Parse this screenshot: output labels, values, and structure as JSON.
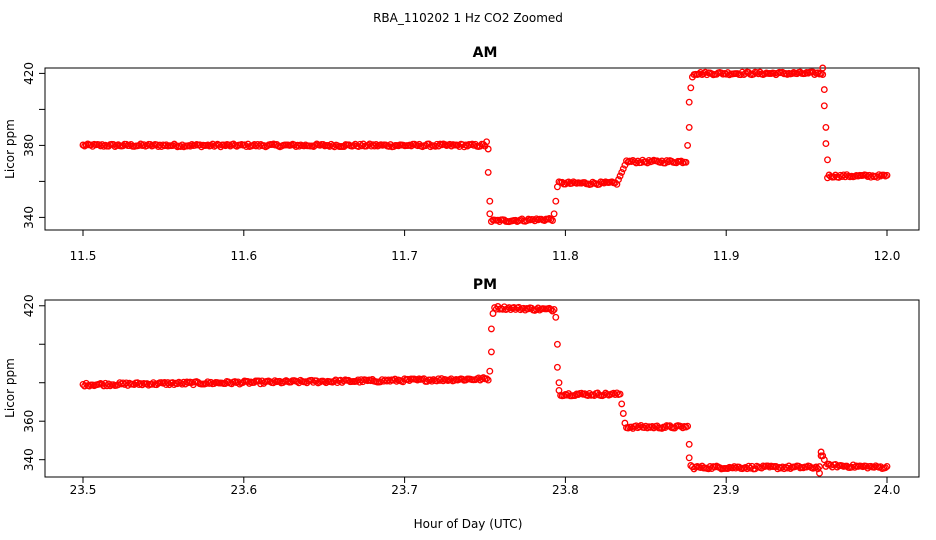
{
  "figure": {
    "title": "RBA_110202  1 Hz CO2 Zoomed",
    "xlabel": "Hour of Day (UTC)"
  },
  "chart_data": [
    {
      "type": "scatter",
      "title": "AM",
      "ylabel": "Licor ppm",
      "xlim": [
        11.5,
        12.0
      ],
      "ylim": [
        333,
        423
      ],
      "xticks": [
        11.5,
        11.6,
        11.7,
        11.8,
        11.9,
        12.0
      ],
      "xtick_labels": [
        "11.5",
        "11.6",
        "11.7",
        "11.8",
        "11.9",
        "12.0"
      ],
      "yticks": [
        340,
        360,
        380,
        400,
        420
      ],
      "ytick_labels": [
        "340",
        "",
        "380",
        "",
        "420"
      ],
      "marker": "open-circle",
      "color": "#ff0000",
      "segments": [
        {
          "x_start": 11.5,
          "x_end": 11.75,
          "y_start": 380,
          "y_end": 380
        },
        {
          "x_start": 11.754,
          "x_end": 11.792,
          "y_start": 338,
          "y_end": 339
        },
        {
          "x_start": 11.796,
          "x_end": 11.832,
          "y_start": 359,
          "y_end": 359
        },
        {
          "x_start": 11.838,
          "x_end": 11.875,
          "y_start": 371,
          "y_end": 371
        },
        {
          "x_start": 11.88,
          "x_end": 11.96,
          "y_start": 420,
          "y_end": 420
        },
        {
          "x_start": 11.964,
          "x_end": 12.0,
          "y_start": 363,
          "y_end": 363
        }
      ],
      "transitions": [
        {
          "x": [
            11.751,
            11.752,
            11.752,
            11.753,
            11.753
          ],
          "y": [
            382,
            378,
            365,
            349,
            342
          ]
        },
        {
          "x": [
            11.793,
            11.794,
            11.795
          ],
          "y": [
            342,
            349,
            357
          ]
        },
        {
          "x": [
            11.833,
            11.834,
            11.835,
            11.836,
            11.837
          ],
          "y": [
            361,
            363,
            365,
            367,
            369
          ]
        },
        {
          "x": [
            11.876,
            11.877,
            11.877,
            11.878,
            11.879
          ],
          "y": [
            380,
            390,
            404,
            412,
            418
          ]
        },
        {
          "x": [
            11.96,
            11.961,
            11.961,
            11.962,
            11.962,
            11.963,
            11.963
          ],
          "y": [
            423,
            411,
            402,
            390,
            381,
            372,
            362
          ]
        }
      ]
    },
    {
      "type": "scatter",
      "title": "PM",
      "ylabel": "Licor ppm",
      "xlim": [
        23.5,
        24.0
      ],
      "ylim": [
        331,
        423
      ],
      "xticks": [
        23.5,
        23.6,
        23.7,
        23.8,
        23.9,
        24.0
      ],
      "xtick_labels": [
        "23.5",
        "23.6",
        "23.7",
        "23.8",
        "23.9",
        "24.0"
      ],
      "yticks": [
        340,
        360,
        380,
        400,
        420
      ],
      "ytick_labels": [
        "340",
        "360",
        "",
        "",
        "420"
      ],
      "marker": "open-circle",
      "color": "#ff0000",
      "segments": [
        {
          "x_start": 23.5,
          "x_end": 23.68,
          "y_start": 379,
          "y_end": 381
        },
        {
          "x_start": 23.68,
          "x_end": 23.752,
          "y_start": 381,
          "y_end": 382
        },
        {
          "x_start": 23.756,
          "x_end": 23.793,
          "y_start": 419,
          "y_end": 418
        },
        {
          "x_start": 23.797,
          "x_end": 23.834,
          "y_start": 374,
          "y_end": 374
        },
        {
          "x_start": 23.838,
          "x_end": 23.876,
          "y_start": 357,
          "y_end": 357
        },
        {
          "x_start": 23.879,
          "x_end": 23.958,
          "y_start": 336,
          "y_end": 336
        },
        {
          "x_start": 23.962,
          "x_end": 24.0,
          "y_start": 337,
          "y_end": 336
        }
      ],
      "transitions": [
        {
          "x": [
            23.753,
            23.754,
            23.754,
            23.755
          ],
          "y": [
            386,
            396,
            408,
            416
          ]
        },
        {
          "x": [
            23.794,
            23.795,
            23.795,
            23.796,
            23.796
          ],
          "y": [
            414,
            400,
            388,
            380,
            376
          ]
        },
        {
          "x": [
            23.835,
            23.836,
            23.837
          ],
          "y": [
            369,
            364,
            359
          ]
        },
        {
          "x": [
            23.877,
            23.877,
            23.878
          ],
          "y": [
            348,
            341,
            337
          ]
        },
        {
          "x": [
            23.958,
            23.959,
            23.959,
            23.96,
            23.961
          ],
          "y": [
            333,
            342,
            344,
            342,
            340
          ]
        }
      ]
    }
  ]
}
